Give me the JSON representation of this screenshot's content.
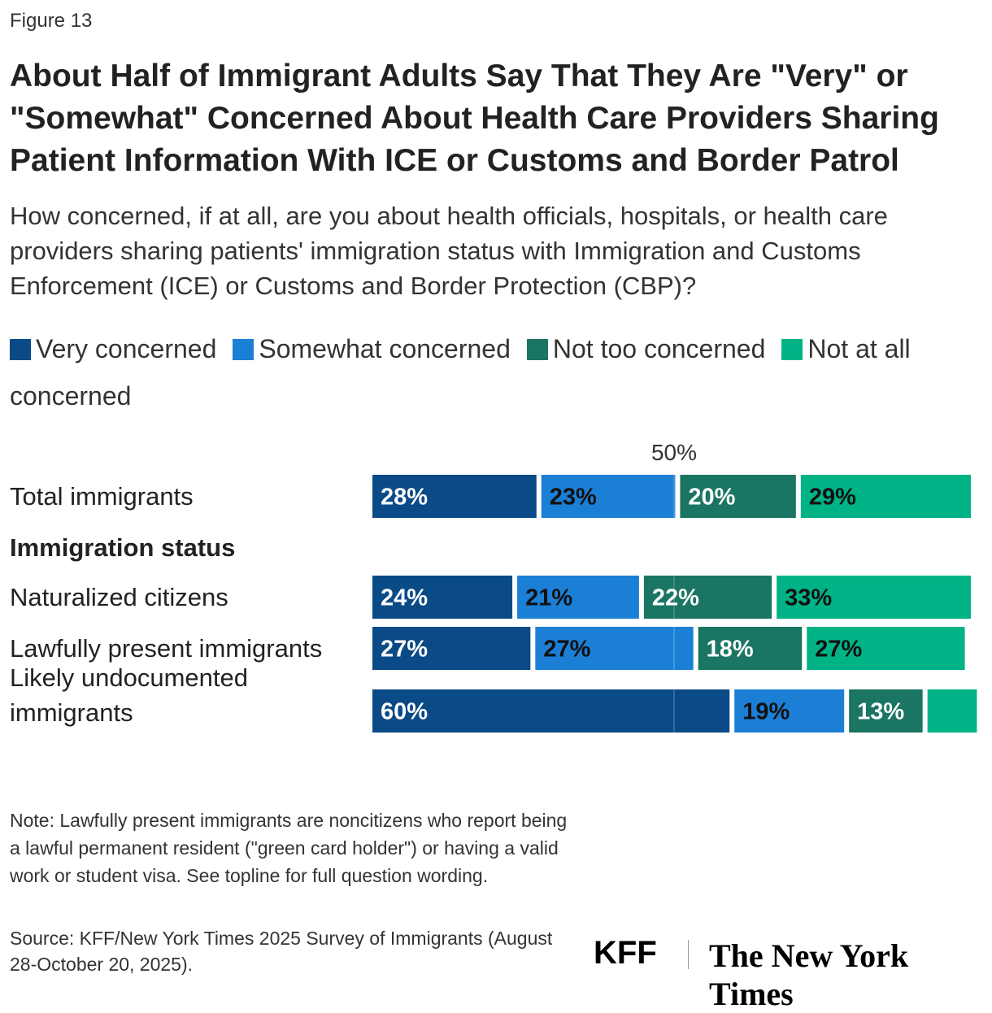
{
  "figure_label": "Figure 13",
  "chart_data": {
    "type": "stacked-bar-horizontal",
    "title": "About Half of Immigrant Adults Say That They Are \"Very\" or \"Somewhat\" Concerned About Health Care Providers Sharing Patient Information With ICE or Customs and Border Patrol",
    "subtitle": "How concerned, if at all, are you about health officials, hospitals, or health care providers sharing patients' immigration status with Immigration and Customs Enforcement (ICE) or Customs and Border Protection (CBP)?",
    "categories": [
      "Total immigrants",
      "Naturalized citizens",
      "Lawfully present immigrants",
      "Likely undocumented immigrants"
    ],
    "group_label": "Immigration status",
    "xlim": [
      0,
      100
    ],
    "reference_line": {
      "value": 50,
      "label": "50%"
    },
    "series": [
      {
        "name": "Very concerned",
        "color": "#0a4a87",
        "values": [
          28,
          24,
          27,
          60
        ],
        "value_labels": [
          "28%",
          "24%",
          "27%",
          "60%"
        ]
      },
      {
        "name": "Somewhat concerned",
        "color": "#1b7fd6",
        "values": [
          23,
          21,
          27,
          19
        ],
        "value_labels": [
          "23%",
          "21%",
          "27%",
          "19%"
        ]
      },
      {
        "name": "Not too concerned",
        "color": "#1a7562",
        "values": [
          20,
          22,
          18,
          13
        ],
        "value_labels": [
          "20%",
          "22%",
          "18%",
          "13%"
        ]
      },
      {
        "name": "Not at all concerned",
        "color": "#00b386",
        "values": [
          29,
          33,
          27,
          9
        ],
        "value_labels": [
          "29%",
          "33%",
          "27%",
          null
        ]
      }
    ]
  },
  "note": "Note: Lawfully present immigrants are noncitizens who report being a lawful permanent resident (\"green card holder\") or having a valid work or student visa. See topline for full question wording.",
  "source": "Source: KFF/New York Times 2025 Survey of Immigrants (August 28-October 20, 2025).",
  "logos": [
    "KFF",
    "The New York Times"
  ]
}
